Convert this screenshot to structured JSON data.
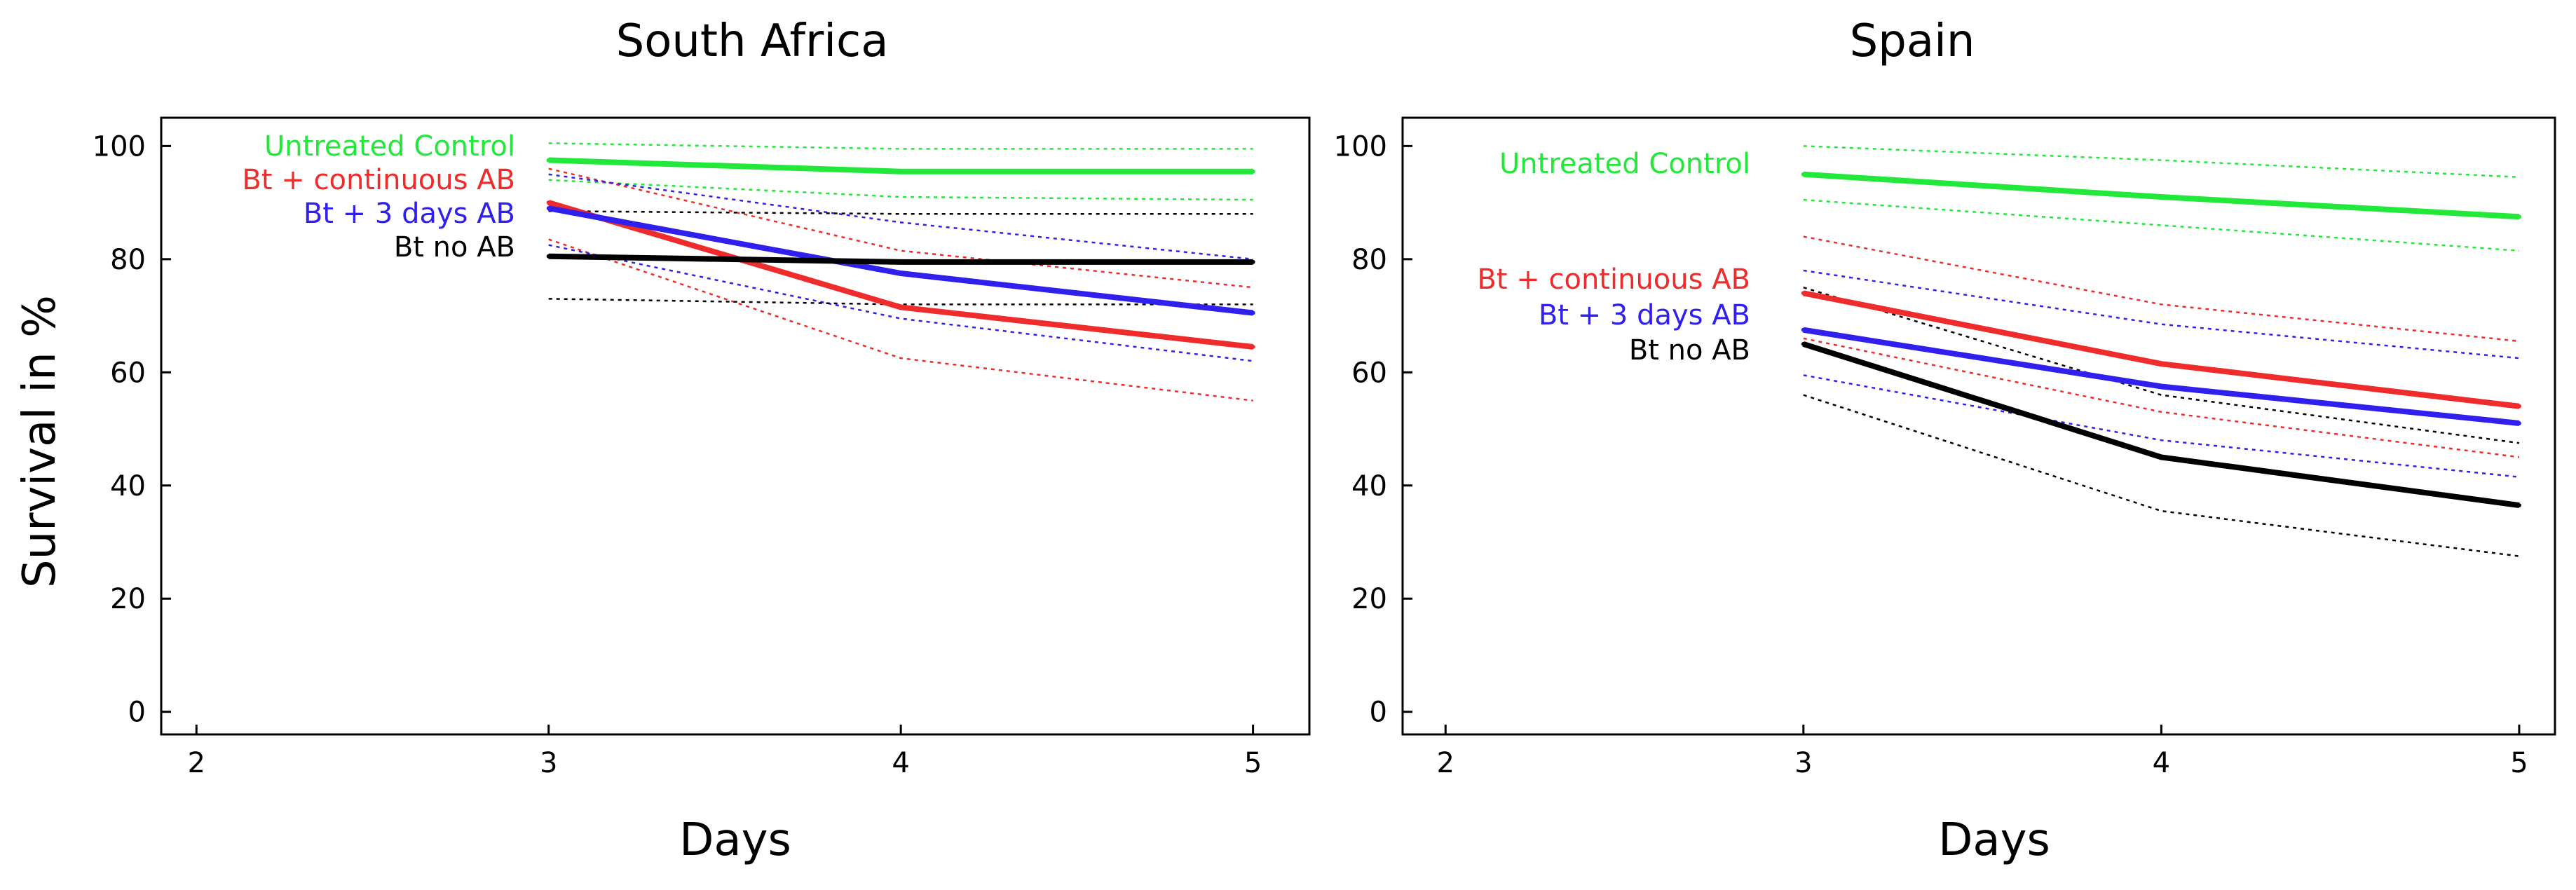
{
  "figure": {
    "ylabel": "Survival in %",
    "colors": {
      "Untreated Control": "#22e83a",
      "Bt + continuous AB": "#ef2b2b",
      "Bt + 3 days AB": "#2f20ee",
      "Bt no AB": "#000000"
    }
  },
  "chart_data": [
    {
      "type": "line",
      "title": "South Africa",
      "xlabel": "Days",
      "ylabel": "Survival in %",
      "xlim": [
        1.9,
        5.16
      ],
      "ylim": [
        -4,
        105
      ],
      "xticks": [
        2,
        3,
        4,
        5
      ],
      "yticks": [
        0,
        20,
        40,
        60,
        80,
        100
      ],
      "grid": false,
      "legend": "upper-left text labels",
      "x": [
        3,
        4,
        5
      ],
      "series": [
        {
          "name": "Untreated Control",
          "color": "#22e83a",
          "values": [
            97.5,
            95.5,
            95.5
          ],
          "ci_upper": [
            100.5,
            99.5,
            99.5
          ],
          "ci_lower": [
            94,
            91,
            90.5
          ]
        },
        {
          "name": "Bt + continuous AB",
          "color": "#ef2b2b",
          "values": [
            90,
            71.5,
            64.5
          ],
          "ci_upper": [
            96,
            81.5,
            75
          ],
          "ci_lower": [
            83.5,
            62.5,
            55
          ]
        },
        {
          "name": "Bt + 3 days AB",
          "color": "#2f20ee",
          "values": [
            89,
            77.5,
            70.5
          ],
          "ci_upper": [
            95,
            86.5,
            80
          ],
          "ci_lower": [
            82.5,
            69.5,
            62
          ]
        },
        {
          "name": "Bt no AB",
          "color": "#000000",
          "values": [
            80.5,
            79.5,
            79.5
          ],
          "ci_upper": [
            88.5,
            88,
            88
          ],
          "ci_lower": [
            73,
            72,
            72
          ]
        }
      ]
    },
    {
      "type": "line",
      "title": "Spain",
      "xlabel": "Days",
      "ylabel": "",
      "xlim": [
        1.88,
        5.1
      ],
      "ylim": [
        -4,
        105
      ],
      "xticks": [
        2,
        3,
        4,
        5
      ],
      "yticks": [
        0,
        20,
        40,
        60,
        80,
        100
      ],
      "grid": false,
      "legend": "upper-left text labels",
      "x": [
        3,
        4,
        5
      ],
      "series": [
        {
          "name": "Untreated Control",
          "color": "#22e83a",
          "values": [
            95,
            91,
            87.5
          ],
          "ci_upper": [
            100,
            97.5,
            94.5
          ],
          "ci_lower": [
            90.5,
            86,
            81.5
          ]
        },
        {
          "name": "Bt + continuous AB",
          "color": "#ef2b2b",
          "values": [
            74,
            61.5,
            54
          ],
          "ci_upper": [
            84,
            72,
            65.5
          ],
          "ci_lower": [
            66,
            53,
            45
          ]
        },
        {
          "name": "Bt + 3 days AB",
          "color": "#2f20ee",
          "values": [
            67.5,
            57.5,
            51
          ],
          "ci_upper": [
            78,
            68.5,
            62.5
          ],
          "ci_lower": [
            59.5,
            48,
            41.5
          ]
        },
        {
          "name": "Bt no AB",
          "color": "#000000",
          "values": [
            65,
            45,
            36.5
          ],
          "ci_upper": [
            75,
            56,
            47.5
          ],
          "ci_lower": [
            56,
            35.5,
            27.5
          ]
        }
      ]
    }
  ]
}
